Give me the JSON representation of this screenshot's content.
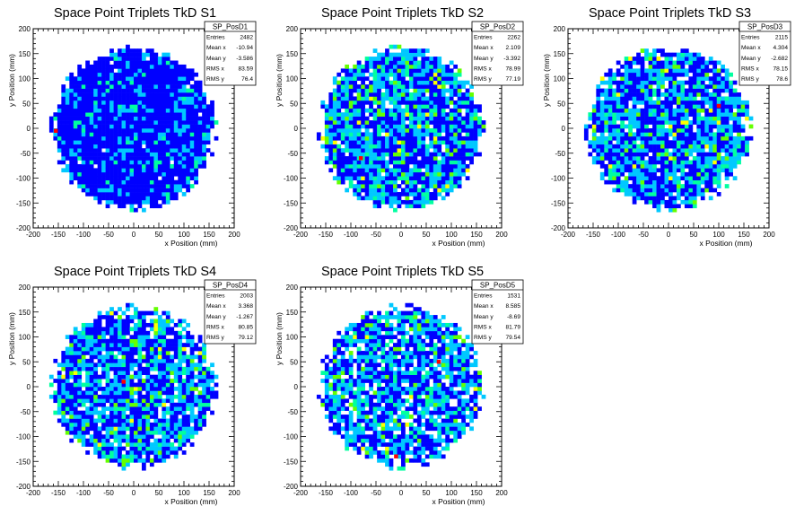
{
  "chart_data": [
    {
      "type": "heatmap",
      "title": "Space Point Triplets TkD S1",
      "xlabel": "x Position (mm)",
      "ylabel": "y Position (mm)",
      "xlim": [
        -200,
        200
      ],
      "ylim": [
        -200,
        200
      ],
      "xticks": [
        -200,
        -150,
        -100,
        -50,
        0,
        50,
        100,
        150,
        200
      ],
      "yticks": [
        -200,
        -150,
        -100,
        -50,
        0,
        50,
        100,
        150,
        200
      ],
      "bin_width_mm": 8,
      "filled_radius_mm": 160,
      "stats": {
        "name": "SP_PosD1",
        "rows": [
          {
            "label": "Entries",
            "value": "2482"
          },
          {
            "label": "Mean x",
            "value": "-10.94"
          },
          {
            "label": "Mean y",
            "value": "-3.586"
          },
          {
            "label": "RMS x",
            "value": "83.59"
          },
          {
            "label": "RMS y",
            "value": "76.4"
          }
        ]
      },
      "hotspots": [
        {
          "x": -155,
          "y": -5
        }
      ]
    },
    {
      "type": "heatmap",
      "title": "Space Point Triplets TkD S2",
      "xlabel": "x Position (mm)",
      "ylabel": "y Position (mm)",
      "xlim": [
        -200,
        200
      ],
      "ylim": [
        -200,
        200
      ],
      "xticks": [
        -200,
        -150,
        -100,
        -50,
        0,
        50,
        100,
        150,
        200
      ],
      "yticks": [
        -200,
        -150,
        -100,
        -50,
        0,
        50,
        100,
        150,
        200
      ],
      "bin_width_mm": 8,
      "filled_radius_mm": 160,
      "stats": {
        "name": "SP_PosD2",
        "rows": [
          {
            "label": "Entries",
            "value": "2262"
          },
          {
            "label": "Mean x",
            "value": "2.109"
          },
          {
            "label": "Mean y",
            "value": "-3.392"
          },
          {
            "label": "RMS x",
            "value": "78.99"
          },
          {
            "label": "RMS y",
            "value": "77.19"
          }
        ]
      },
      "hotspots": [
        {
          "x": -80,
          "y": -60
        }
      ]
    },
    {
      "type": "heatmap",
      "title": "Space Point Triplets TkD S3",
      "xlabel": "x Position (mm)",
      "ylabel": "y Position (mm)",
      "xlim": [
        -200,
        200
      ],
      "ylim": [
        -200,
        200
      ],
      "xticks": [
        -200,
        -150,
        -100,
        -50,
        0,
        50,
        100,
        150,
        200
      ],
      "yticks": [
        -200,
        -150,
        -100,
        -50,
        0,
        50,
        100,
        150,
        200
      ],
      "bin_width_mm": 8,
      "filled_radius_mm": 160,
      "stats": {
        "name": "SP_PosD3",
        "rows": [
          {
            "label": "Entries",
            "value": "2115"
          },
          {
            "label": "Mean x",
            "value": "4.304"
          },
          {
            "label": "Mean y",
            "value": "-2.682"
          },
          {
            "label": "RMS x",
            "value": "78.15"
          },
          {
            "label": "RMS y",
            "value": "78.6"
          }
        ]
      },
      "hotspots": [
        {
          "x": 100,
          "y": 45
        }
      ]
    },
    {
      "type": "heatmap",
      "title": "Space Point Triplets TkD S4",
      "xlabel": "x Position (mm)",
      "ylabel": "y Position (mm)",
      "xlim": [
        -200,
        200
      ],
      "ylim": [
        -200,
        200
      ],
      "xticks": [
        -200,
        -150,
        -100,
        -50,
        0,
        50,
        100,
        150,
        200
      ],
      "yticks": [
        -200,
        -150,
        -100,
        -50,
        0,
        50,
        100,
        150,
        200
      ],
      "bin_width_mm": 8,
      "filled_radius_mm": 160,
      "stats": {
        "name": "SP_PosD4",
        "rows": [
          {
            "label": "Entries",
            "value": "2003"
          },
          {
            "label": "Mean x",
            "value": "3.368"
          },
          {
            "label": "Mean y",
            "value": "-1.267"
          },
          {
            "label": "RMS x",
            "value": "80.85"
          },
          {
            "label": "RMS y",
            "value": "79.12"
          }
        ]
      },
      "hotspots": [
        {
          "x": -20,
          "y": 10
        }
      ]
    },
    {
      "type": "heatmap",
      "title": "Space Point Triplets TkD S5",
      "xlabel": "x Position (mm)",
      "ylabel": "y Position (mm)",
      "xlim": [
        -200,
        200
      ],
      "ylim": [
        -200,
        200
      ],
      "xticks": [
        -200,
        -150,
        -100,
        -50,
        0,
        50,
        100,
        150,
        200
      ],
      "yticks": [
        -200,
        -150,
        -100,
        -50,
        0,
        50,
        100,
        150,
        200
      ],
      "bin_width_mm": 8,
      "filled_radius_mm": 160,
      "stats": {
        "name": "SP_PosD5",
        "rows": [
          {
            "label": "Entries",
            "value": "1531"
          },
          {
            "label": "Mean x",
            "value": "8.585"
          },
          {
            "label": "Mean y",
            "value": "-8.69"
          },
          {
            "label": "RMS x",
            "value": "81.79"
          },
          {
            "label": "RMS y",
            "value": "79.54"
          }
        ]
      },
      "hotspots": [
        {
          "x": -10,
          "y": -140
        },
        {
          "x": 75,
          "y": 50
        }
      ]
    }
  ],
  "colors": {
    "palette": [
      "#0000ff",
      "#00c8ff",
      "#00ffa0",
      "#64ff00",
      "#ffff00",
      "#ff8000",
      "#ff0000"
    ],
    "axis": "#000000",
    "background": "#ffffff"
  }
}
